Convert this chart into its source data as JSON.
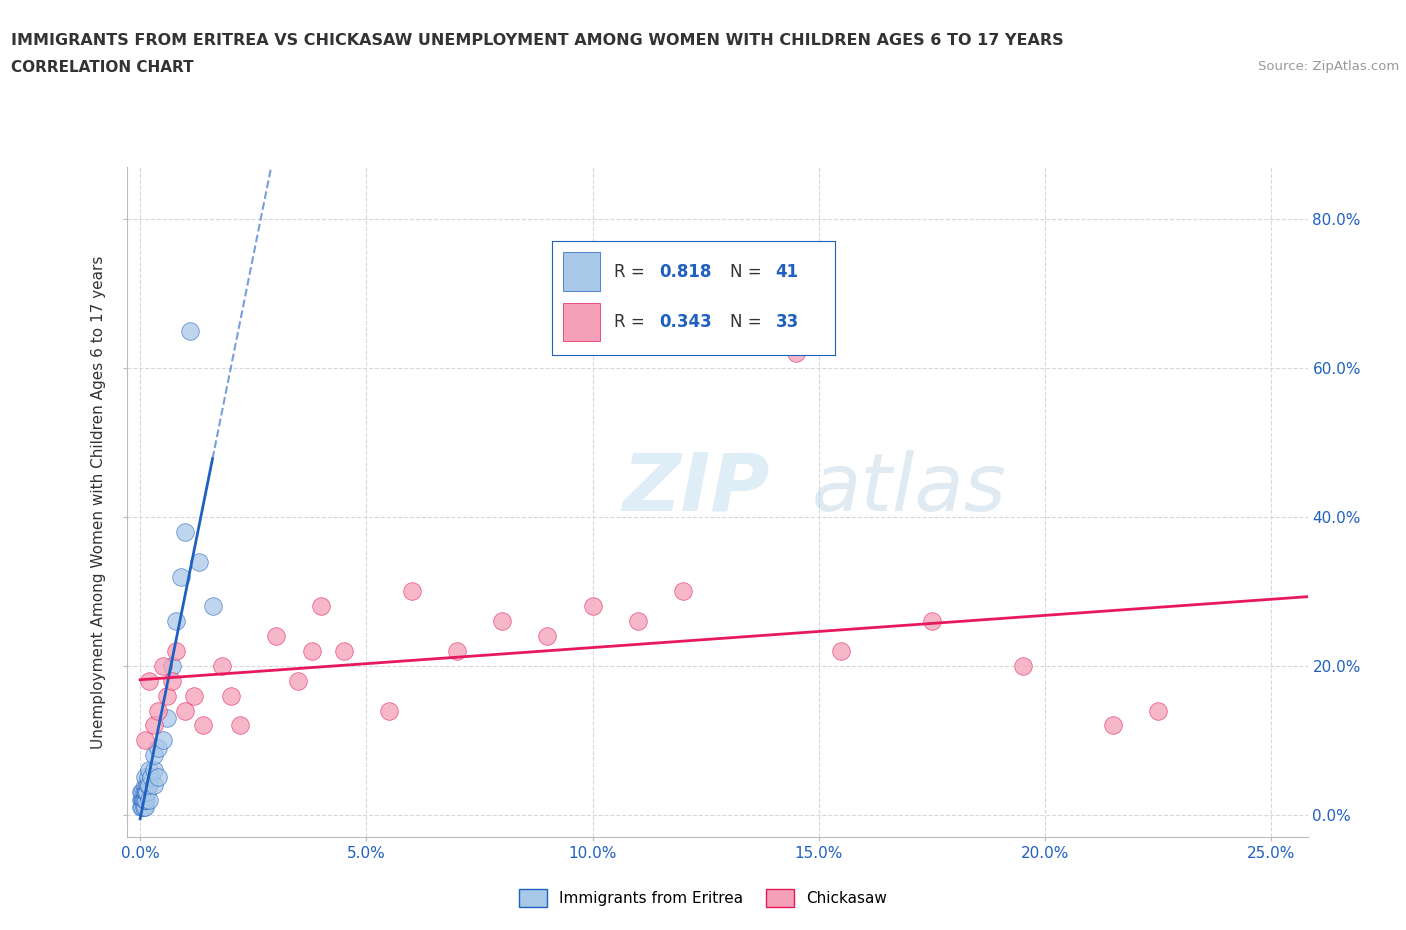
{
  "title": "IMMIGRANTS FROM ERITREA VS CHICKASAW UNEMPLOYMENT AMONG WOMEN WITH CHILDREN AGES 6 TO 17 YEARS",
  "subtitle": "CORRELATION CHART",
  "source": "Source: ZipAtlas.com",
  "ylabel": "Unemployment Among Women with Children Ages 6 to 17 years",
  "x_tick_labels": [
    "0.0%",
    "5.0%",
    "10.0%",
    "15.0%",
    "20.0%",
    "25.0%"
  ],
  "x_tick_values": [
    0.0,
    0.05,
    0.1,
    0.15,
    0.2,
    0.25
  ],
  "y_tick_labels": [
    "0.0%",
    "20.0%",
    "40.0%",
    "60.0%",
    "80.0%"
  ],
  "y_tick_values": [
    0.0,
    0.2,
    0.4,
    0.6,
    0.8
  ],
  "xlim": [
    -0.003,
    0.258
  ],
  "ylim": [
    -0.03,
    0.87
  ],
  "color_eritrea": "#a8c8e8",
  "color_chickasaw": "#f4a0b8",
  "line_color_eritrea": "#2060c0",
  "line_color_chickasaw": "#e8185c",
  "watermark_zip": "ZIP",
  "watermark_atlas": "atlas",
  "background_color": "#ffffff",
  "grid_color": "#d8d8d8",
  "eritrea_x": [
    0.0002,
    0.0003,
    0.0003,
    0.0004,
    0.0005,
    0.0005,
    0.0006,
    0.0007,
    0.0008,
    0.0008,
    0.0009,
    0.001,
    0.001,
    0.001,
    0.001,
    0.001,
    0.0012,
    0.0013,
    0.0014,
    0.0015,
    0.0016,
    0.0017,
    0.0018,
    0.002,
    0.002,
    0.002,
    0.0025,
    0.003,
    0.003,
    0.003,
    0.004,
    0.004,
    0.005,
    0.006,
    0.007,
    0.008,
    0.009,
    0.01,
    0.011,
    0.013,
    0.016
  ],
  "eritrea_y": [
    0.01,
    0.02,
    0.03,
    0.02,
    0.01,
    0.03,
    0.02,
    0.02,
    0.01,
    0.03,
    0.02,
    0.01,
    0.02,
    0.03,
    0.04,
    0.05,
    0.02,
    0.03,
    0.03,
    0.04,
    0.03,
    0.04,
    0.05,
    0.02,
    0.04,
    0.06,
    0.05,
    0.04,
    0.06,
    0.08,
    0.05,
    0.09,
    0.1,
    0.13,
    0.2,
    0.26,
    0.32,
    0.38,
    0.65,
    0.34,
    0.28
  ],
  "chickasaw_x": [
    0.001,
    0.002,
    0.003,
    0.004,
    0.005,
    0.006,
    0.007,
    0.008,
    0.01,
    0.012,
    0.014,
    0.018,
    0.02,
    0.022,
    0.03,
    0.035,
    0.038,
    0.04,
    0.045,
    0.055,
    0.06,
    0.07,
    0.08,
    0.09,
    0.1,
    0.11,
    0.12,
    0.145,
    0.155,
    0.175,
    0.195,
    0.215,
    0.225
  ],
  "chickasaw_y": [
    0.1,
    0.18,
    0.12,
    0.14,
    0.2,
    0.16,
    0.18,
    0.22,
    0.14,
    0.16,
    0.12,
    0.2,
    0.16,
    0.12,
    0.24,
    0.18,
    0.22,
    0.28,
    0.22,
    0.14,
    0.3,
    0.22,
    0.26,
    0.24,
    0.28,
    0.26,
    0.3,
    0.62,
    0.22,
    0.26,
    0.2,
    0.12,
    0.14
  ],
  "legend_box_color_eritrea": "#a8c8e8",
  "legend_box_color_chickasaw": "#f4a0b8",
  "legend_text_color": "#2060c0",
  "legend_label_color": "#333333"
}
